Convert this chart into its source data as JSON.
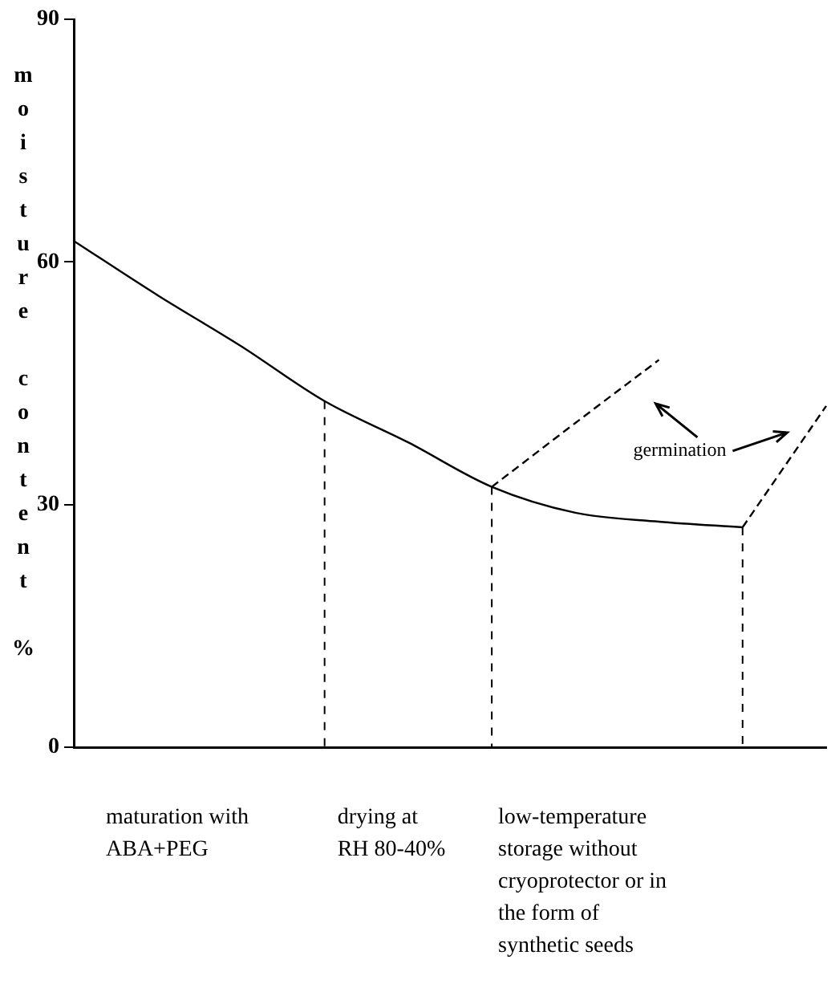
{
  "chart_data": {
    "type": "line",
    "ylabel": "moisture content %",
    "categories": [
      null,
      null,
      null,
      null,
      null,
      null,
      null,
      null,
      null,
      null
    ],
    "ylim": [
      0,
      90
    ],
    "yticks": [
      0,
      30,
      60,
      90
    ],
    "grid": false,
    "legend": false,
    "marker": "none",
    "series": [
      {
        "color": "#000000",
        "line_style": "solid",
        "values": [
          62.6,
          55.9,
          49.6,
          42.8,
          37.7,
          32.2,
          29.0,
          27.9,
          27.2,
          null
        ],
        "errors": [
          null,
          null,
          null,
          [
            0,
            42.8
          ],
          null,
          [
            0,
            32.2
          ],
          null,
          null,
          [
            0,
            27.2
          ],
          null
        ]
      },
      {
        "color": "#000000",
        "line_style": "dashed",
        "values": [
          null,
          null,
          null,
          null,
          null,
          32.2,
          40.1,
          47.9,
          null,
          null
        ]
      },
      {
        "color": "#000000",
        "line_style": "dashed",
        "values": [
          null,
          null,
          null,
          null,
          null,
          null,
          null,
          null,
          27.2,
          42.2
        ]
      }
    ],
    "annotations": [
      "germination",
      "maturation with\nABA+PEG",
      "drying at\nRH 80-40%",
      "low-temperature\nstorage without\ncryoprotector or in\nthe form of\nsynthetic seeds"
    ]
  }
}
